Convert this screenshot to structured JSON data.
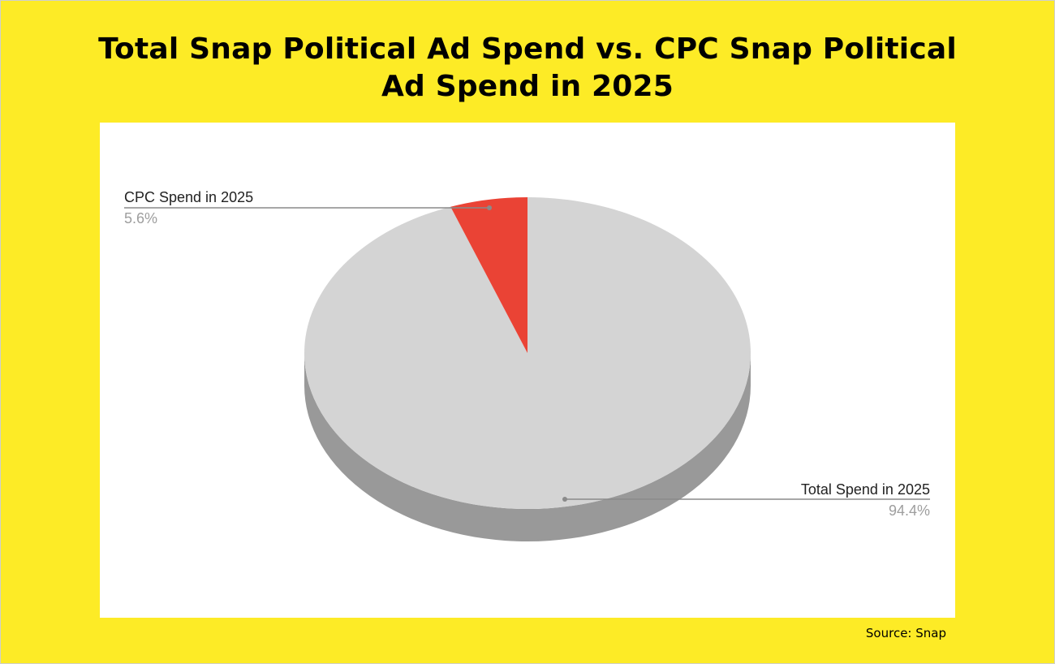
{
  "title_lines": [
    "Total Snap Political Ad Spend vs. CPC Snap Political",
    "Ad Spend in 2025"
  ],
  "source": "Source: Snap",
  "colors": {
    "background": "#fdeb26",
    "panel": "#ffffff",
    "total_slice": "#d4d4d4",
    "total_side": "#999999",
    "cpc_slice": "#ea4335",
    "cpc_side": "#a52a21",
    "label_text": "#222222",
    "percent_text": "#9e9e9e",
    "leader_line": "#8a8a8a"
  },
  "chart_data": {
    "type": "pie",
    "title": "Total Snap Political Ad Spend vs. CPC Snap Political Ad Spend in 2025",
    "style": "3d",
    "slices": [
      {
        "label": "Total Spend in 2025",
        "value": 94.4,
        "percent_label": "94.4%"
      },
      {
        "label": "CPC Spend in 2025",
        "value": 5.6,
        "percent_label": "5.6%"
      }
    ]
  }
}
